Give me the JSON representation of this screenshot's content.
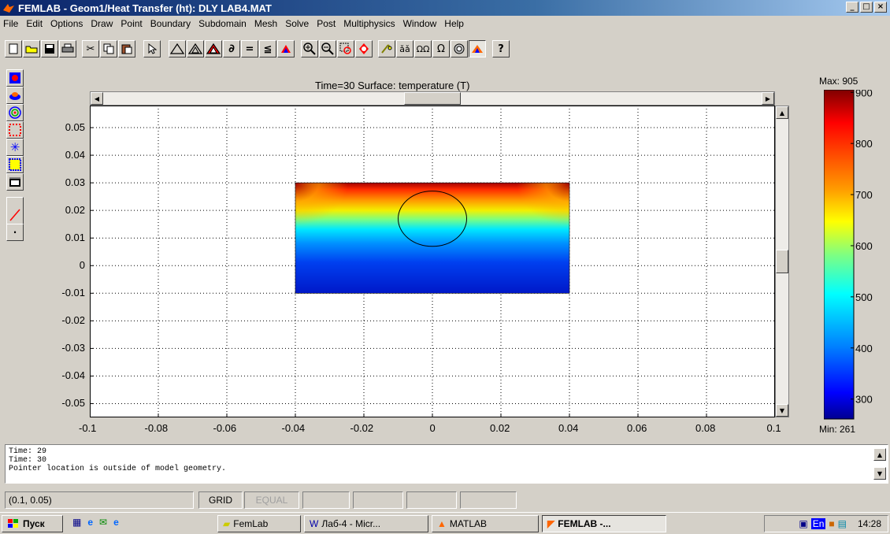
{
  "window": {
    "title": "FEMLAB - Geom1/Heat Transfer (ht): DLY LAB4.MAT",
    "min": "_",
    "max": "□",
    "close": "×"
  },
  "menu": [
    "File",
    "Edit",
    "Options",
    "Draw",
    "Point",
    "Boundary",
    "Subdomain",
    "Mesh",
    "Solve",
    "Post",
    "Multiphysics",
    "Window",
    "Help"
  ],
  "toolbar_icons": [
    "new-file-icon",
    "open-folder-icon",
    "save-icon",
    "print-icon",
    "cut-icon",
    "copy-icon",
    "paste-icon",
    "pointer-icon",
    "draw-mode-icon",
    "subdomain-mode-icon",
    "boundary-mode-icon",
    "pde-coefficients-icon",
    "equals-icon",
    "init-mesh-icon",
    "refine-icon",
    "zoom-in-icon",
    "zoom-out-icon",
    "zoom-window-icon",
    "zoom-extents-icon",
    "solve-icon",
    "hat-icon",
    "omega-icon",
    "omega-2-icon",
    "plot-icon",
    "help-icon"
  ],
  "plot": {
    "title": "Time=30  Surface: temperature (T)",
    "x_ticks": [
      "-0.1",
      "-0.08",
      "-0.06",
      "-0.04",
      "-0.02",
      "0",
      "0.02",
      "0.04",
      "0.06",
      "0.08",
      "0.1"
    ],
    "y_ticks": [
      "0.05",
      "0.04",
      "0.03",
      "0.02",
      "0.01",
      "0",
      "-0.01",
      "-0.02",
      "-0.03",
      "-0.04",
      "-0.05"
    ]
  },
  "chart_data": {
    "type": "heatmap",
    "title": "Time=30  Surface: temperature (T)",
    "xlim": [
      -0.1,
      0.1
    ],
    "ylim": [
      -0.055,
      0.058
    ],
    "grid": true,
    "geometry": {
      "rectangle": {
        "x": [
          -0.04,
          0.04
        ],
        "y": [
          -0.01,
          0.03
        ]
      },
      "circle": {
        "cx": 0,
        "cy": 0.017,
        "r": 0.01
      }
    },
    "colorbar": {
      "max_label": "Max: 905",
      "min_label": "Min: 261",
      "ticks": [
        "900",
        "800",
        "700",
        "600",
        "500",
        "400",
        "300"
      ],
      "vmin": 261,
      "vmax": 905
    }
  },
  "console": {
    "lines": [
      "Time: 29",
      "Time: 30",
      "Pointer location is outside of model geometry."
    ]
  },
  "status": {
    "coords": "(0.1, 0.05)",
    "grid": "GRID",
    "equal": "EQUAL"
  },
  "taskbar": {
    "start": "Пуск",
    "items": [
      "FemLab",
      "Лаб-4 - Micr...",
      "MATLAB",
      "FEMLAB -..."
    ],
    "lang": "En",
    "clock": "14:28"
  }
}
